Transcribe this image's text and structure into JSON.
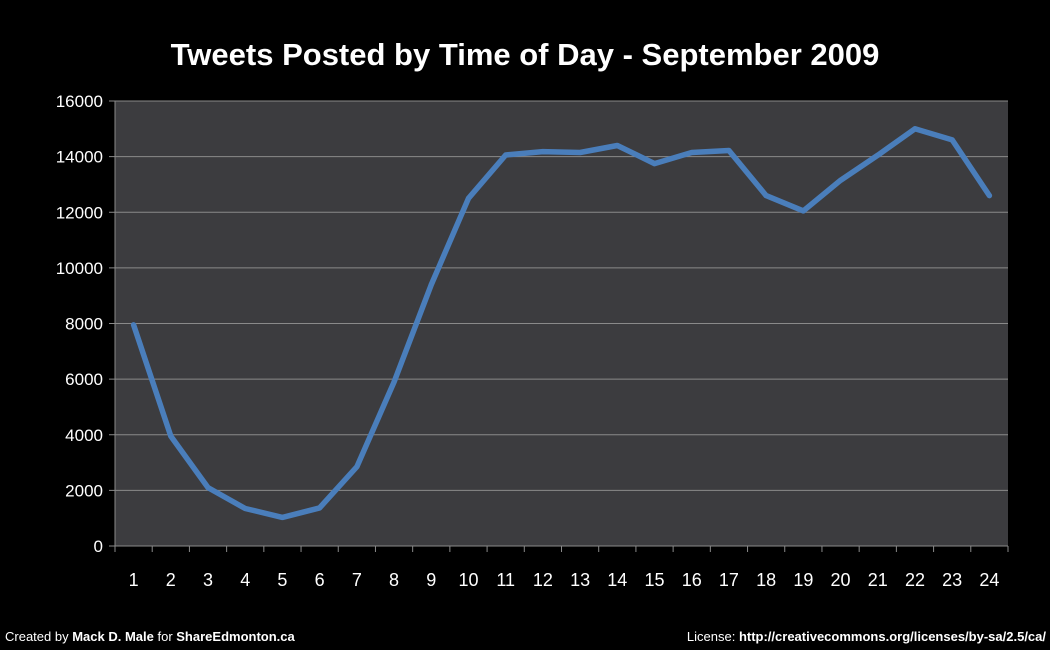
{
  "chart_data": {
    "type": "line",
    "title": "Tweets Posted by Time of Day - September 2009",
    "xlabel": "",
    "ylabel": "",
    "categories": [
      "1",
      "2",
      "3",
      "4",
      "5",
      "6",
      "7",
      "8",
      "9",
      "10",
      "11",
      "12",
      "13",
      "14",
      "15",
      "16",
      "17",
      "18",
      "19",
      "20",
      "21",
      "22",
      "23",
      "24"
    ],
    "series": [
      {
        "values": [
          7950,
          3950,
          2100,
          1350,
          1030,
          1370,
          2850,
          5900,
          9400,
          12500,
          14060,
          14180,
          14150,
          14400,
          13750,
          14150,
          14220,
          12600,
          12050,
          13150,
          14050,
          15000,
          14600,
          12600
        ],
        "color": "#4a7ebb"
      }
    ],
    "ylim": [
      0,
      16000
    ],
    "yticks": [
      0,
      2000,
      4000,
      6000,
      8000,
      10000,
      12000,
      14000,
      16000
    ],
    "grid": true,
    "legend": "none",
    "colors": {
      "background": "#000000",
      "plot_area": "#3c3c3f",
      "gridline": "#8a8a8a",
      "text": "#ffffff"
    }
  },
  "footer": {
    "left_prefix": "Created by ",
    "left_author": "Mack D. Male",
    "left_mid": " for ",
    "left_site": "ShareEdmonton.ca",
    "right_prefix": "License: ",
    "right_url": "http://creativecommons.org/licenses/by-sa/2.5/ca/"
  }
}
